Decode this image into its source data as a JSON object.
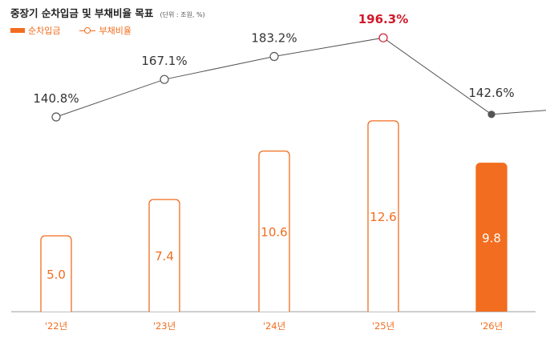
{
  "title": "중장기 순차입금 및 부채비율 목표",
  "unit": "(단위 : 조원, %)",
  "legend": {
    "bar": "순차입금",
    "line": "부채비율"
  },
  "colors": {
    "orange": "#f26d1f",
    "line": "#555555",
    "highlight": "#d0192a"
  },
  "chart_data": {
    "type": "bar",
    "categories": [
      "'22년",
      "'23년",
      "'24년",
      "'25년",
      "'26년"
    ],
    "series": [
      {
        "name": "순차입금",
        "type": "bar",
        "values": [
          5.0,
          7.4,
          10.6,
          12.6,
          9.8
        ]
      },
      {
        "name": "부채비율",
        "type": "line",
        "values": [
          140.8,
          167.1,
          183.2,
          196.3,
          142.6
        ]
      }
    ],
    "bar_labels": [
      "5.0",
      "7.4",
      "10.6",
      "12.6",
      "9.8"
    ],
    "line_labels": [
      "140.8%",
      "167.1%",
      "183.2%",
      "196.3%",
      "142.6%"
    ],
    "highlight_label_index": 3,
    "filled_bar_index": 4
  }
}
